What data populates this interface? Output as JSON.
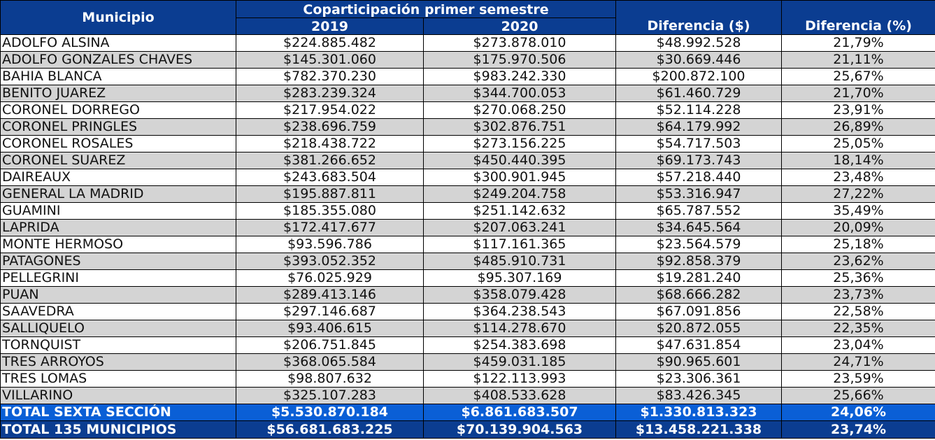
{
  "header": {
    "municipio": "Municipio",
    "group_title": "Coparticipación primer semestre",
    "year_2019": "2019",
    "year_2020": "2020",
    "diff_money": "Diferencia ($)",
    "diff_pct": "Diferencia (%)"
  },
  "rows": [
    {
      "name": "ADOLFO ALSINA",
      "v2019": "$224.885.482",
      "v2020": "$273.878.010",
      "diff": "$48.992.528",
      "pct": "21,79%"
    },
    {
      "name": "ADOLFO GONZALES CHAVES",
      "v2019": "$145.301.060",
      "v2020": "$175.970.506",
      "diff": "$30.669.446",
      "pct": "21,11%"
    },
    {
      "name": "BAHIA BLANCA",
      "v2019": "$782.370.230",
      "v2020": "$983.242.330",
      "diff": "$200.872.100",
      "pct": "25,67%"
    },
    {
      "name": "BENITO JUAREZ",
      "v2019": "$283.239.324",
      "v2020": "$344.700.053",
      "diff": "$61.460.729",
      "pct": "21,70%"
    },
    {
      "name": "CORONEL DORREGO",
      "v2019": "$217.954.022",
      "v2020": "$270.068.250",
      "diff": "$52.114.228",
      "pct": "23,91%"
    },
    {
      "name": "CORONEL PRINGLES",
      "v2019": "$238.696.759",
      "v2020": "$302.876.751",
      "diff": "$64.179.992",
      "pct": "26,89%"
    },
    {
      "name": "CORONEL ROSALES",
      "v2019": "$218.438.722",
      "v2020": "$273.156.225",
      "diff": "$54.717.503",
      "pct": "25,05%"
    },
    {
      "name": "CORONEL SUAREZ",
      "v2019": "$381.266.652",
      "v2020": "$450.440.395",
      "diff": "$69.173.743",
      "pct": "18,14%"
    },
    {
      "name": "DAIREAUX",
      "v2019": "$243.683.504",
      "v2020": "$300.901.945",
      "diff": "$57.218.440",
      "pct": "23,48%"
    },
    {
      "name": "GENERAL LA MADRID",
      "v2019": "$195.887.811",
      "v2020": "$249.204.758",
      "diff": "$53.316.947",
      "pct": "27,22%"
    },
    {
      "name": "GUAMINI",
      "v2019": "$185.355.080",
      "v2020": "$251.142.632",
      "diff": "$65.787.552",
      "pct": "35,49%"
    },
    {
      "name": "LAPRIDA",
      "v2019": "$172.417.677",
      "v2020": "$207.063.241",
      "diff": "$34.645.564",
      "pct": "20,09%"
    },
    {
      "name": "MONTE HERMOSO",
      "v2019": "$93.596.786",
      "v2020": "$117.161.365",
      "diff": "$23.564.579",
      "pct": "25,18%"
    },
    {
      "name": "PATAGONES",
      "v2019": "$393.052.352",
      "v2020": "$485.910.731",
      "diff": "$92.858.379",
      "pct": "23,62%"
    },
    {
      "name": "PELLEGRINI",
      "v2019": "$76.025.929",
      "v2020": "$95.307.169",
      "diff": "$19.281.240",
      "pct": "25,36%"
    },
    {
      "name": "PUAN",
      "v2019": "$289.413.146",
      "v2020": "$358.079.428",
      "diff": "$68.666.282",
      "pct": "23,73%"
    },
    {
      "name": "SAAVEDRA",
      "v2019": "$297.146.687",
      "v2020": "$364.238.543",
      "diff": "$67.091.856",
      "pct": "22,58%"
    },
    {
      "name": "SALLIQUELO",
      "v2019": "$93.406.615",
      "v2020": "$114.278.670",
      "diff": "$20.872.055",
      "pct": "22,35%"
    },
    {
      "name": "TORNQUIST",
      "v2019": "$206.751.845",
      "v2020": "$254.383.698",
      "diff": "$47.631.854",
      "pct": "23,04%"
    },
    {
      "name": "TRES ARROYOS",
      "v2019": "$368.065.584",
      "v2020": "$459.031.185",
      "diff": "$90.965.601",
      "pct": "24,71%"
    },
    {
      "name": "TRES LOMAS",
      "v2019": "$98.807.632",
      "v2020": "$122.113.993",
      "diff": "$23.306.361",
      "pct": "23,59%"
    },
    {
      "name": "VILLARINO",
      "v2019": "$325.107.283",
      "v2020": "$408.533.628",
      "diff": "$83.426.345",
      "pct": "25,66%"
    }
  ],
  "totals": [
    {
      "name": "TOTAL SEXTA SECCIÓN",
      "v2019": "$5.530.870.184",
      "v2020": "$6.861.683.507",
      "diff": "$1.330.813.323",
      "pct": "24,06%"
    },
    {
      "name": "TOTAL 135 MUNICIPIOS",
      "v2019": "$56.681.683.225",
      "v2020": "$70.139.904.563",
      "diff": "$13.458.221.338",
      "pct": "23,74%"
    }
  ],
  "colors": {
    "header_bg": "#0b3d91",
    "total_sexta_bg": "#0a5fd6",
    "stripe_gray": "#d4d4d4"
  }
}
